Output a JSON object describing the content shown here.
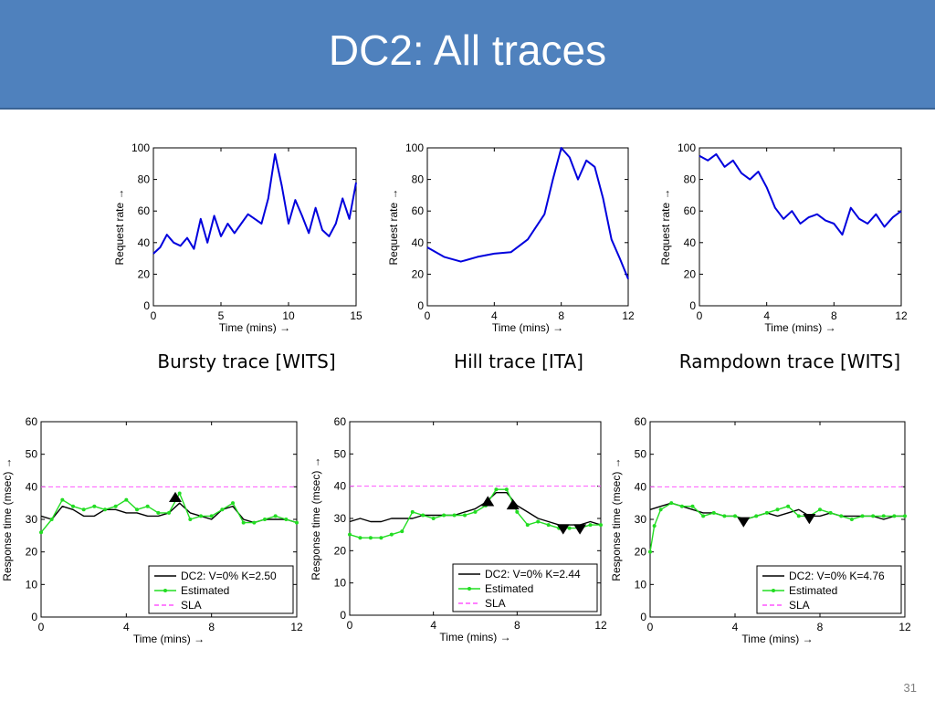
{
  "slide": {
    "title": "DC2: All traces",
    "slide_number": "31",
    "captions": [
      "Bursty trace [WITS]",
      "Hill trace [ITA]",
      "Rampdown trace [WITS]"
    ]
  },
  "colors": {
    "title_bg": "#4f81bd",
    "trace": "#0000dd",
    "measured": "#000000",
    "estimated": "#22dd22",
    "sla": "#ff55ff"
  },
  "chart_data": [
    {
      "type": "line",
      "xlabel": "Time (mins) →",
      "ylabel": "Request rate →",
      "xlim": [
        0,
        15
      ],
      "ylim": [
        0,
        100
      ],
      "xticks": [
        "0",
        "5",
        "10",
        "15"
      ],
      "yticks": [
        "0",
        "20",
        "40",
        "60",
        "80",
        "100"
      ],
      "series": [
        {
          "x": [
            0,
            0.5,
            1,
            1.5,
            2,
            2.5,
            3,
            3.5,
            4,
            4.5,
            5,
            5.5,
            6,
            6.5,
            7,
            7.5,
            8,
            8.5,
            9,
            9.5,
            10,
            10.5,
            11,
            11.5,
            12,
            12.5,
            13,
            13.5,
            14,
            14.5,
            15
          ],
          "values": [
            33,
            37,
            45,
            40,
            38,
            43,
            36,
            55,
            40,
            57,
            44,
            52,
            46,
            52,
            58,
            55,
            52,
            68,
            96,
            76,
            52,
            67,
            57,
            46,
            62,
            48,
            44,
            52,
            68,
            55,
            78
          ]
        }
      ]
    },
    {
      "type": "line",
      "xlabel": "Time (mins) →",
      "ylabel": "Request rate →",
      "xlim": [
        0,
        12
      ],
      "ylim": [
        0,
        100
      ],
      "xticks": [
        "0",
        "4",
        "8",
        "12"
      ],
      "yticks": [
        "0",
        "20",
        "40",
        "60",
        "80",
        "100"
      ],
      "series": [
        {
          "x": [
            0,
            1,
            2,
            3,
            4,
            5,
            6,
            7,
            7.5,
            8,
            8.5,
            9,
            9.5,
            10,
            10.5,
            11,
            11.5,
            12
          ],
          "values": [
            37,
            31,
            28,
            31,
            33,
            34,
            42,
            58,
            80,
            100,
            94,
            80,
            92,
            88,
            68,
            42,
            30,
            17
          ]
        }
      ]
    },
    {
      "type": "line",
      "xlabel": "Time (mins) →",
      "ylabel": "Request rate →",
      "xlim": [
        0,
        12
      ],
      "ylim": [
        0,
        100
      ],
      "xticks": [
        "0",
        "4",
        "8",
        "12"
      ],
      "yticks": [
        "0",
        "20",
        "40",
        "60",
        "80",
        "100"
      ],
      "series": [
        {
          "x": [
            0,
            0.5,
            1,
            1.5,
            2,
            2.5,
            3,
            3.5,
            4,
            4.5,
            5,
            5.5,
            6,
            6.5,
            7,
            7.5,
            8,
            8.5,
            9,
            9.5,
            10,
            10.5,
            11,
            11.5,
            12
          ],
          "values": [
            95,
            92,
            96,
            88,
            92,
            84,
            80,
            85,
            75,
            62,
            55,
            60,
            52,
            56,
            58,
            54,
            52,
            45,
            62,
            55,
            52,
            58,
            50,
            56,
            60
          ]
        }
      ]
    },
    {
      "type": "line",
      "xlabel": "Time (mins) →",
      "ylabel": "Response time (msec) →",
      "xlim": [
        0,
        12
      ],
      "ylim": [
        0,
        60
      ],
      "xticks": [
        "0",
        "4",
        "8",
        "12"
      ],
      "yticks": [
        "0",
        "10",
        "20",
        "30",
        "40",
        "50",
        "60"
      ],
      "legend": {
        "placement": "bottom-right"
      },
      "sla": 40,
      "markers": [
        {
          "x": 6.3,
          "y": 36.5,
          "dir": "up"
        }
      ],
      "series": [
        {
          "name": "DC2: V=0% K=2.50",
          "x": [
            0,
            0.5,
            1,
            1.5,
            2,
            2.5,
            3,
            3.5,
            4,
            4.5,
            5,
            5.5,
            6,
            6.5,
            7,
            7.5,
            8,
            8.5,
            9,
            9.5,
            10,
            10.5,
            11,
            11.5,
            12
          ],
          "values": [
            31,
            30,
            34,
            33,
            31,
            31,
            33,
            33,
            32,
            32,
            31,
            31,
            32,
            35,
            32,
            31,
            30,
            33,
            34,
            30,
            29,
            30,
            30,
            30,
            29
          ]
        },
        {
          "name": "Estimated",
          "x": [
            0,
            0.5,
            1,
            1.5,
            2,
            2.5,
            3,
            3.5,
            4,
            4.5,
            5,
            5.5,
            6,
            6.5,
            7,
            7.5,
            8,
            8.5,
            9,
            9.5,
            10,
            10.5,
            11,
            11.5,
            12
          ],
          "values": [
            26,
            30,
            36,
            34,
            33,
            34,
            33,
            34,
            36,
            33,
            34,
            32,
            32,
            38,
            30,
            31,
            31,
            33,
            35,
            29,
            29,
            30,
            31,
            30,
            29
          ]
        },
        {
          "name": "SLA"
        }
      ]
    },
    {
      "type": "line",
      "xlabel": "Time (mins) →",
      "ylabel": "Response time (msec) →",
      "xlim": [
        0,
        12
      ],
      "ylim": [
        0,
        60
      ],
      "xticks": [
        "0",
        "4",
        "8",
        "12"
      ],
      "yticks": [
        "0",
        "10",
        "20",
        "30",
        "40",
        "50",
        "60"
      ],
      "legend": {
        "placement": "bottom-right"
      },
      "sla": 40,
      "markers": [
        {
          "x": 6.6,
          "y": 35,
          "dir": "up"
        },
        {
          "x": 7.8,
          "y": 34,
          "dir": "up"
        },
        {
          "x": 10.2,
          "y": 27,
          "dir": "down"
        },
        {
          "x": 11,
          "y": 27,
          "dir": "down"
        }
      ],
      "series": [
        {
          "name": "DC2: V=0% K=2.44",
          "x": [
            0,
            0.5,
            1,
            1.5,
            2,
            2.5,
            3,
            3.5,
            4,
            4.5,
            5,
            5.5,
            6,
            6.5,
            7,
            7.5,
            8,
            8.5,
            9,
            9.5,
            10,
            10.5,
            11,
            11.5,
            12
          ],
          "values": [
            29,
            30,
            29,
            29,
            30,
            30,
            30,
            31,
            31,
            31,
            31,
            32,
            33,
            35,
            38,
            38,
            34,
            32,
            30,
            29,
            28,
            28,
            28,
            29,
            28
          ]
        },
        {
          "name": "Estimated",
          "x": [
            0,
            0.5,
            1,
            1.5,
            2,
            2.5,
            3,
            3.5,
            4,
            4.5,
            5,
            5.5,
            6,
            6.5,
            7,
            7.5,
            8,
            8.5,
            9,
            9.5,
            10,
            10.5,
            11,
            11.5,
            12
          ],
          "values": [
            25,
            24,
            24,
            24,
            25,
            26,
            32,
            31,
            30,
            31,
            31,
            31,
            32,
            34,
            39,
            39,
            32,
            28,
            29,
            28,
            27,
            27,
            27,
            28,
            28
          ]
        },
        {
          "name": "SLA"
        }
      ]
    },
    {
      "type": "line",
      "xlabel": "Time (mins) →",
      "ylabel": "Response time (msec) →",
      "xlim": [
        0,
        12
      ],
      "ylim": [
        0,
        60
      ],
      "xticks": [
        "0",
        "4",
        "8",
        "12"
      ],
      "yticks": [
        "0",
        "10",
        "20",
        "30",
        "40",
        "50",
        "60"
      ],
      "legend": {
        "placement": "bottom-right"
      },
      "sla": 40,
      "markers": [
        {
          "x": 4.4,
          "y": 29.5,
          "dir": "down"
        },
        {
          "x": 7.5,
          "y": 30.5,
          "dir": "down"
        }
      ],
      "series": [
        {
          "name": "DC2: V=0% K=4.76",
          "x": [
            0,
            0.5,
            1,
            1.5,
            2,
            2.5,
            3,
            3.5,
            4,
            4.5,
            5,
            5.5,
            6,
            6.5,
            7,
            7.5,
            8,
            8.5,
            9,
            9.5,
            10,
            10.5,
            11,
            11.5,
            12
          ],
          "values": [
            33,
            34,
            35,
            34,
            33,
            32,
            32,
            31,
            31,
            30,
            31,
            32,
            31,
            32,
            33,
            31,
            31,
            32,
            31,
            31,
            31,
            31,
            30,
            31,
            31
          ]
        },
        {
          "name": "Estimated",
          "x": [
            0,
            0.2,
            0.5,
            1,
            1.5,
            2,
            2.5,
            3,
            3.5,
            4,
            4.5,
            5,
            5.5,
            6,
            6.5,
            7,
            7.5,
            8,
            8.5,
            9,
            9.5,
            10,
            10.5,
            11,
            11.5,
            12
          ],
          "values": [
            20,
            28,
            33,
            35,
            34,
            34,
            31,
            32,
            31,
            31,
            30,
            31,
            32,
            33,
            34,
            31,
            31,
            33,
            32,
            31,
            30,
            31,
            31,
            31,
            31,
            31
          ]
        },
        {
          "name": "SLA"
        }
      ]
    }
  ]
}
